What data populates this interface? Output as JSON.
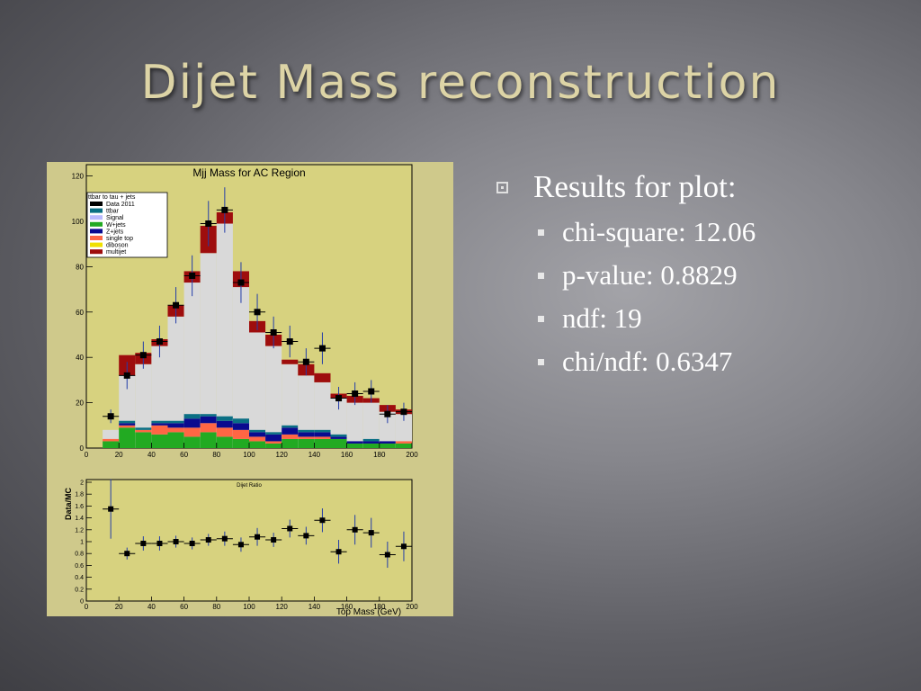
{
  "slide": {
    "title": "Dijet Mass reconstruction",
    "bullet": "Results for plot:",
    "subbullets": [
      "chi-square: 12.06",
      "p-value: 0.8829",
      "ndf: 19",
      "chi/ndf: 0.6347"
    ]
  },
  "colors": {
    "figure_background": "#cfc98b",
    "frame_background": "#d7d27f",
    "stack_multijet": "#9e0d0d",
    "stack_other": "#d9d9d9",
    "stack_singletop": "#ff6644",
    "stack_wjets": "#22aa22",
    "stack_zjets": "#0a0a8f",
    "stack_ttbar": "#0a6f84",
    "data_marker": "#000000",
    "error_bar": "#233da8"
  },
  "chart_data": [
    {
      "type": "bar",
      "stacked": true,
      "title": "Mjj Mass for AC Region",
      "xlim": [
        0,
        200
      ],
      "ylim": [
        0,
        125
      ],
      "xticks": [
        0,
        20,
        40,
        60,
        80,
        100,
        120,
        140,
        160,
        180,
        200
      ],
      "yticks": [
        0,
        20,
        40,
        60,
        80,
        100,
        120
      ],
      "legend_title": "ttbar to tau + jets",
      "legend_position": "top-left",
      "legend": [
        "Data 2011",
        "ttbar",
        "Signal",
        "W+jets",
        "Z+jets",
        "single top",
        "diboson",
        "multijet"
      ],
      "bin_edges": [
        10,
        20,
        30,
        40,
        50,
        60,
        70,
        80,
        90,
        100,
        110,
        120,
        130,
        140,
        150,
        160,
        170,
        180,
        190,
        200
      ],
      "stack_top": [
        8,
        41,
        42,
        48,
        63,
        78,
        98,
        104,
        78,
        56,
        50,
        39,
        37,
        33,
        24,
        23,
        22,
        19,
        17
      ],
      "multijet_lower": [
        8,
        32,
        37,
        45,
        58,
        73,
        86,
        99,
        71,
        51,
        45,
        37,
        32,
        29,
        22,
        20,
        20,
        16,
        15
      ],
      "series": [
        {
          "name": "W+jets",
          "values": [
            3,
            9,
            7,
            6,
            7,
            5,
            7,
            5,
            4,
            3,
            2,
            4,
            4,
            4,
            4,
            2,
            2,
            2,
            2
          ]
        },
        {
          "name": "single top",
          "values": [
            1,
            1,
            1,
            4,
            2,
            4,
            4,
            4,
            4,
            2,
            1,
            2,
            1,
            1,
            0,
            0,
            0,
            0,
            1
          ]
        },
        {
          "name": "Z+jets",
          "values": [
            0,
            1,
            0,
            1,
            2,
            4,
            3,
            3,
            3,
            2,
            3,
            3,
            2,
            2,
            1,
            1,
            1,
            1,
            0
          ]
        },
        {
          "name": "ttbar",
          "values": [
            0,
            1,
            1,
            1,
            1,
            2,
            1,
            2,
            2,
            1,
            1,
            1,
            1,
            1,
            1,
            0,
            1,
            0,
            0
          ]
        }
      ],
      "data_points": {
        "x": [
          15,
          25,
          35,
          45,
          55,
          65,
          75,
          85,
          95,
          105,
          115,
          125,
          135,
          145,
          155,
          165,
          175,
          185,
          195
        ],
        "y": [
          14,
          32,
          41,
          47,
          63,
          76,
          99,
          105,
          73,
          60,
          51,
          47,
          38,
          44,
          22,
          24,
          25,
          15,
          16
        ],
        "err": [
          3,
          6,
          6,
          7,
          8,
          9,
          10,
          10,
          9,
          8,
          7,
          7,
          6,
          7,
          5,
          5,
          5,
          4,
          4
        ]
      }
    },
    {
      "type": "scatter",
      "title": "Dijet Ratio",
      "xlabel": "Top Mass (GeV)",
      "ylabel": "Data/MC",
      "xlim": [
        0,
        200
      ],
      "ylim": [
        0,
        2
      ],
      "xticks": [
        0,
        20,
        40,
        60,
        80,
        100,
        120,
        140,
        160,
        180,
        200
      ],
      "yticks": [
        0,
        0.2,
        0.4,
        0.6,
        0.8,
        1,
        1.2,
        1.4,
        1.6,
        1.8,
        2
      ],
      "ytick_labels": [
        "0",
        "0.2",
        "0.4",
        "0.6",
        "0.8",
        "1",
        "1.2",
        "1.4",
        "1.6",
        "1.8",
        "2"
      ],
      "x": [
        15,
        25,
        35,
        45,
        55,
        65,
        75,
        85,
        95,
        105,
        115,
        125,
        135,
        145,
        155,
        165,
        175,
        185,
        195
      ],
      "y": [
        1.55,
        0.8,
        0.97,
        0.97,
        1.0,
        0.97,
        1.03,
        1.05,
        0.95,
        1.08,
        1.03,
        1.22,
        1.1,
        1.36,
        0.83,
        1.2,
        1.15,
        0.78,
        0.92
      ],
      "err": [
        0.5,
        0.1,
        0.12,
        0.12,
        0.1,
        0.1,
        0.1,
        0.12,
        0.12,
        0.15,
        0.12,
        0.15,
        0.15,
        0.2,
        0.2,
        0.25,
        0.25,
        0.22,
        0.25
      ]
    }
  ]
}
